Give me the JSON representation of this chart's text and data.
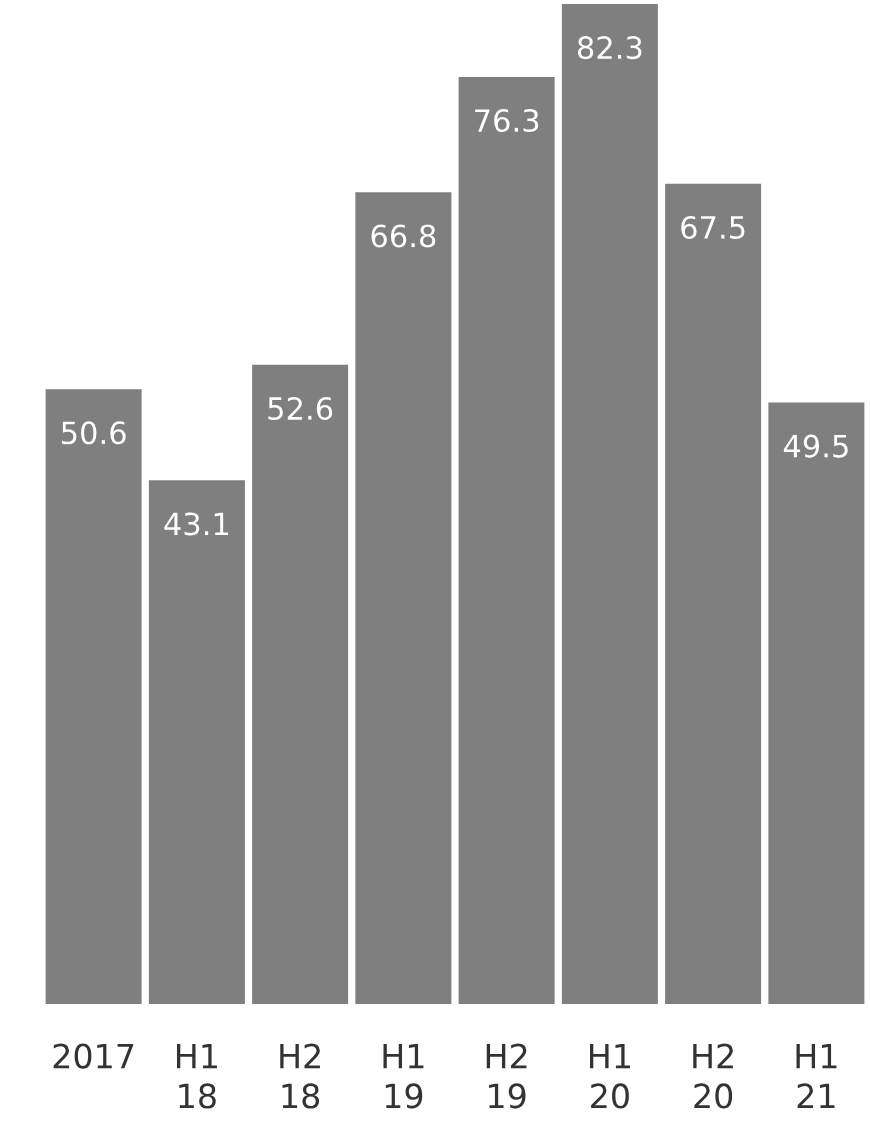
{
  "chart_data": {
    "type": "bar",
    "categories": [
      "2017",
      "H1\n18",
      "H2\n18",
      "H1\n19",
      "H2\n19",
      "H1\n20",
      "H2\n20",
      "H1\n21"
    ],
    "values": [
      50.6,
      43.1,
      52.6,
      66.8,
      76.3,
      82.3,
      67.5,
      49.5
    ],
    "color": "#7f7f7f",
    "data_labels": true,
    "grid": false,
    "legend": false
  }
}
